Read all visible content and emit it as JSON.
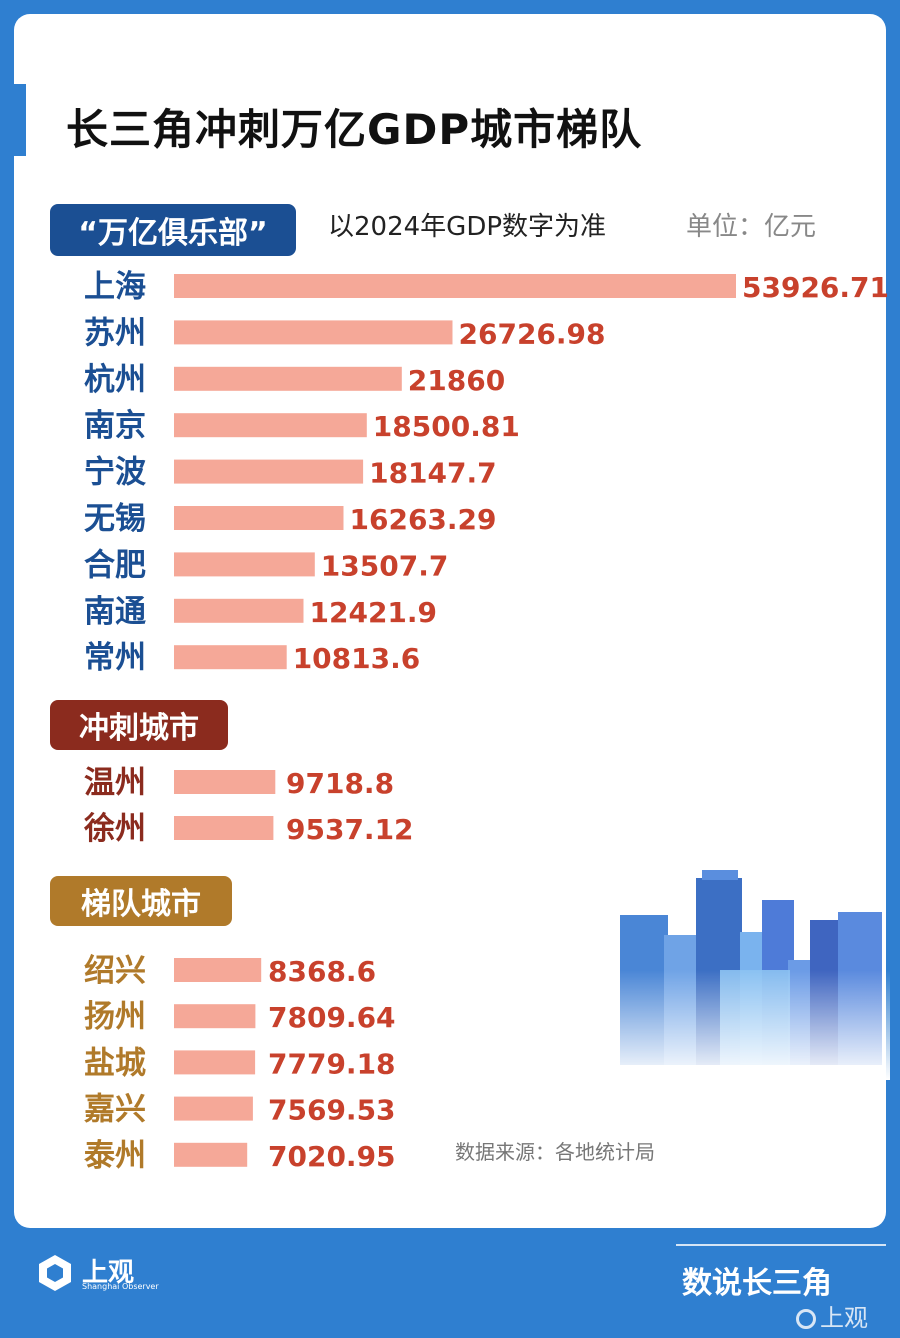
{
  "title": "长三角冲刺万亿GDP城市梯队",
  "note": "以2024年GDP数字为准",
  "unit": "单位：亿元",
  "source": "数据来源：各地统计局",
  "brand": {
    "name": "上观",
    "sub": "Shanghai Observer",
    "column": "数说长三角",
    "watermark": "上观"
  },
  "colors": {
    "background": "#2f7fd0",
    "bar": "#f5a898",
    "value": "#c8412c",
    "club_label": "#1b4f93",
    "sprint_label": "#8b2b1e",
    "tier_label": "#b07a2a"
  },
  "chart_data": {
    "type": "bar",
    "orientation": "horizontal",
    "title": "长三角冲刺万亿GDP城市梯队",
    "unit": "亿元",
    "groups": [
      {
        "label": "“万亿俱乐部”",
        "categories": [
          "上海",
          "苏州",
          "杭州",
          "南京",
          "宁波",
          "无锡",
          "合肥",
          "南通",
          "常州"
        ],
        "values": [
          53926.71,
          26726.98,
          21860,
          18500.81,
          18147.7,
          16263.29,
          13507.7,
          12421.9,
          10813.6
        ],
        "value_labels": [
          "53926.71",
          "26726.98",
          "21860",
          "18500.81",
          "18147.7",
          "16263.29",
          "13507.7",
          "12421.9",
          "10813.6"
        ]
      },
      {
        "label": "冲刺城市",
        "categories": [
          "温州",
          "徐州"
        ],
        "values": [
          9718.8,
          9537.12
        ],
        "value_labels": [
          "9718.8",
          "9537.12"
        ]
      },
      {
        "label": "梯队城市",
        "categories": [
          "绍兴",
          "扬州",
          "盐城",
          "嘉兴",
          "泰州"
        ],
        "values": [
          8368.6,
          7809.64,
          7779.18,
          7569.53,
          7020.95
        ],
        "value_labels": [
          "8368.6",
          "7809.64",
          "7779.18",
          "7569.53",
          "7020.95"
        ]
      }
    ]
  }
}
